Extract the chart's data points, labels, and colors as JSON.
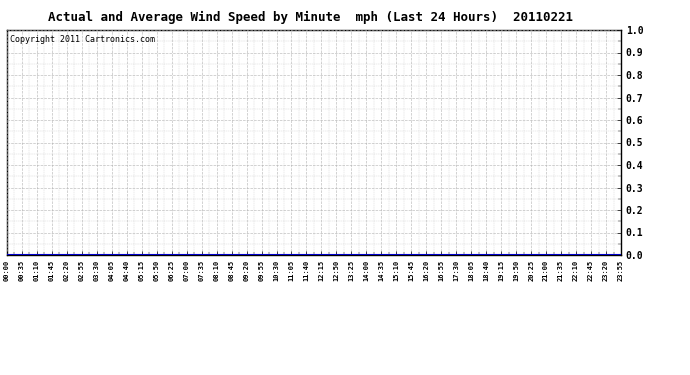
{
  "title": "Actual and Average Wind Speed by Minute  mph (Last 24 Hours)  20110221",
  "copyright_text": "Copyright 2011 Cartronics.com",
  "background_color": "#ffffff",
  "plot_bg_color": "#ffffff",
  "grid_color": "#b0b0b0",
  "line_color": "#0000cc",
  "y_min": 0.0,
  "y_max": 1.0,
  "y_tick_positions": [
    0.0,
    0.1,
    0.2,
    0.3,
    0.4,
    0.5,
    0.6,
    0.7,
    0.8,
    0.9,
    1.0
  ],
  "y_tick_labels": [
    "0.0",
    "0.1",
    "0.2",
    "0.3",
    "0.4",
    "0.5",
    "0.6",
    "0.7",
    "0.8",
    "0.9",
    "1.0"
  ],
  "x_tick_labels": [
    "00:00",
    "00:35",
    "01:10",
    "01:45",
    "02:20",
    "02:55",
    "03:30",
    "04:05",
    "04:40",
    "05:15",
    "05:50",
    "06:25",
    "07:00",
    "07:35",
    "08:10",
    "08:45",
    "09:20",
    "09:55",
    "10:30",
    "11:05",
    "11:40",
    "12:15",
    "12:50",
    "13:25",
    "14:00",
    "14:35",
    "15:10",
    "15:45",
    "16:20",
    "16:55",
    "17:30",
    "18:05",
    "18:40",
    "19:15",
    "19:50",
    "20:25",
    "21:00",
    "21:35",
    "22:10",
    "22:45",
    "23:20",
    "23:55"
  ],
  "num_points": 1440,
  "title_fontsize": 9,
  "copyright_fontsize": 6,
  "ytick_fontsize": 7,
  "xtick_fontsize": 5
}
